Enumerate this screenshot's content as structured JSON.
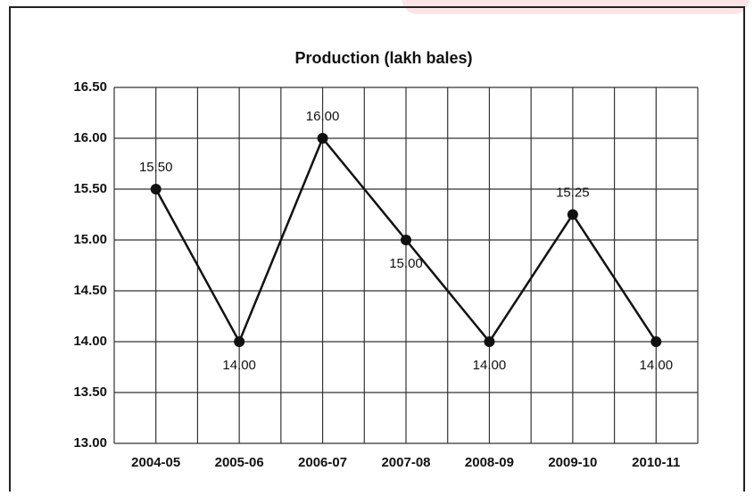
{
  "chart_data": {
    "type": "line",
    "title": "Production (lakh bales)",
    "categories": [
      "2004-05",
      "2005-06",
      "2006-07",
      "2007-08",
      "2008-09",
      "2009-10",
      "2010-11"
    ],
    "series": [
      {
        "name": "Production",
        "color": "#111111",
        "values": [
          15.5,
          14,
          16,
          15,
          14,
          15.25,
          14
        ],
        "value_labels": [
          "15.50",
          "14.00",
          "16.00",
          "15.00",
          "14.00",
          "15.25",
          "14.00"
        ]
      }
    ],
    "ylim": [
      13,
      16.5
    ],
    "yticks": [
      {
        "value": 13,
        "label": "13.00"
      },
      {
        "value": 13.5,
        "label": "13.50"
      },
      {
        "value": 14,
        "label": "14.00"
      },
      {
        "value": 14.5,
        "label": "14.50"
      },
      {
        "value": 15,
        "label": "15.00"
      },
      {
        "value": 15.5,
        "label": "15.50"
      },
      {
        "value": 16,
        "label": "16.00"
      },
      {
        "value": 16.5,
        "label": "16.50"
      }
    ],
    "grid": true
  }
}
